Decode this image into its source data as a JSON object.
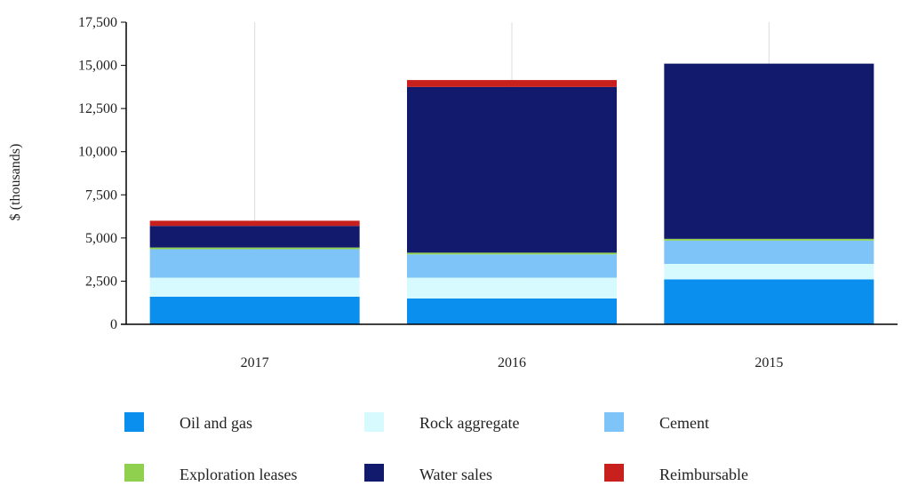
{
  "chart_data": {
    "type": "bar",
    "stacked": true,
    "categories": [
      "2017",
      "2016",
      "2015"
    ],
    "series": [
      {
        "name": "Oil and gas",
        "color": "#0a8fef",
        "values": [
          1600,
          1500,
          2600
        ]
      },
      {
        "name": "Rock aggregate",
        "color": "#d7faff",
        "values": [
          1100,
          1200,
          900
        ]
      },
      {
        "name": "Cement",
        "color": "#7ec4f9",
        "values": [
          1650,
          1350,
          1350
        ]
      },
      {
        "name": "Exploration leases",
        "color": "#8fd14f",
        "values": [
          100,
          100,
          100
        ]
      },
      {
        "name": "Water sales",
        "color": "#121a6e",
        "values": [
          1250,
          9600,
          10150
        ]
      },
      {
        "name": "Reimbursable",
        "color": "#c8201d",
        "values": [
          300,
          400,
          0
        ]
      }
    ],
    "title": "",
    "xlabel": "",
    "ylabel": "$ (thousands)",
    "ylim": [
      0,
      17500
    ],
    "yticks": [
      0,
      2500,
      5000,
      7500,
      10000,
      12500,
      15000,
      17500
    ],
    "ytick_labels": [
      "0",
      "2,500",
      "5,000",
      "7,500",
      "10,000",
      "12,500",
      "15,000",
      "17,500"
    ],
    "grid": "vertical",
    "legend": "bottom"
  }
}
